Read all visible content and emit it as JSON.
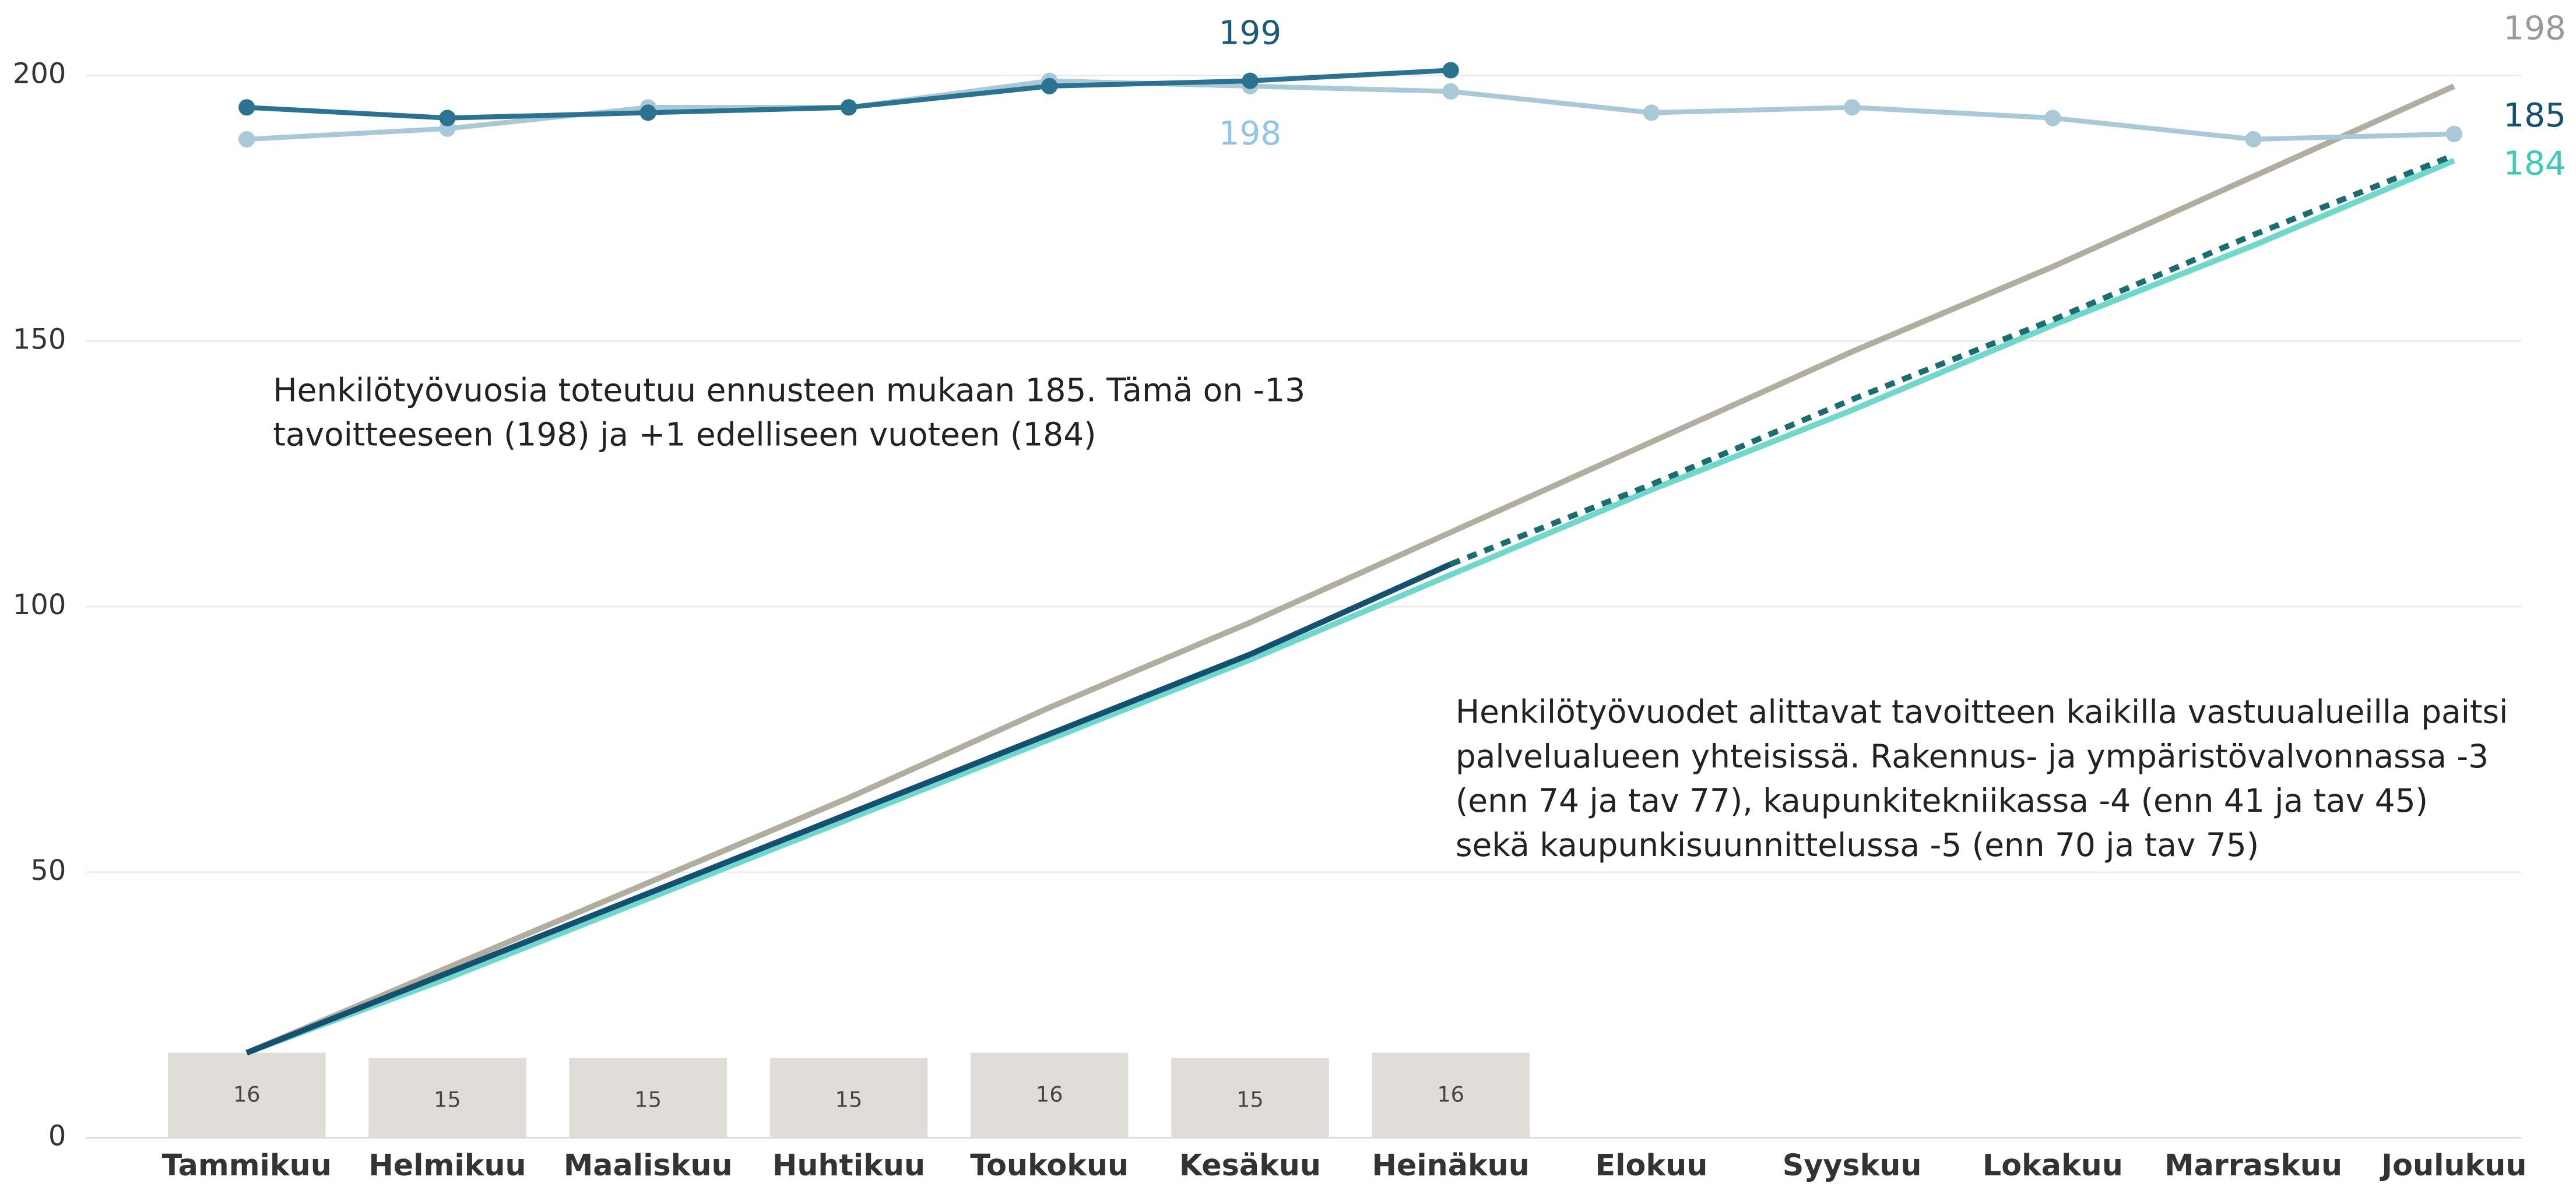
{
  "chart_data": {
    "type": "line",
    "categories": [
      "Tammikuu",
      "Helmikuu",
      "Maaliskuu",
      "Huhtikuu",
      "Toukokuu",
      "Kesäkuu",
      "Heinäkuu",
      "Elokuu",
      "Syyskuu",
      "Lokakuu",
      "Marraskuu",
      "Joulukuu"
    ],
    "ylim": [
      0,
      200
    ],
    "yticks": [
      0,
      50,
      100,
      150,
      200
    ],
    "grid": true,
    "bars": {
      "color": "#e0ddd6",
      "values": [
        16,
        15,
        15,
        15,
        16,
        15,
        16
      ]
    },
    "series": [
      {
        "color": "#2b7190",
        "markers": true,
        "label_color": "#1d5a78",
        "label_side": "above",
        "values": [
          194,
          192,
          193,
          194,
          198,
          199,
          201,
          null,
          null,
          null,
          null,
          null
        ],
        "value_labels": [
          null,
          null,
          null,
          null,
          null,
          "199",
          null,
          null,
          null,
          null,
          null,
          null
        ]
      },
      {
        "color": "#a9c9d9",
        "markers": true,
        "label_color": "#8fc6ea",
        "label_side": "below",
        "values": [
          188,
          190,
          194,
          194,
          199,
          198,
          197,
          193,
          194,
          192,
          188,
          189
        ],
        "value_labels": [
          null,
          null,
          null,
          null,
          null,
          "198",
          null,
          null,
          null,
          null,
          null,
          null
        ]
      },
      {
        "color": "#b1ae9f",
        "label_color": "#9a9a9a",
        "label_side": "right",
        "values": [
          16,
          32,
          48,
          64,
          81,
          97,
          114,
          131,
          148,
          164,
          181,
          198
        ],
        "value_labels": [
          null,
          null,
          null,
          null,
          null,
          null,
          null,
          null,
          null,
          null,
          null,
          "198"
        ]
      },
      {
        "color": "#6fd8ca",
        "label_color": "#3cc9b5",
        "label_side": "right",
        "values": [
          16,
          30,
          45,
          60,
          75,
          90,
          106,
          122,
          137,
          153,
          168,
          184
        ],
        "value_labels": [
          null,
          null,
          null,
          null,
          null,
          null,
          null,
          null,
          null,
          null,
          null,
          "184"
        ]
      },
      {
        "color": "#14506f",
        "values": [
          16,
          31,
          46,
          61,
          76,
          91,
          108,
          null,
          null,
          null,
          null,
          null
        ]
      },
      {
        "color": "#1c6d70",
        "dashed": true,
        "label_color": "#14506f",
        "label_side": "right",
        "values": [
          null,
          null,
          null,
          null,
          null,
          null,
          108,
          123,
          139,
          154,
          170,
          185
        ],
        "value_labels": [
          null,
          null,
          null,
          null,
          null,
          null,
          null,
          null,
          null,
          null,
          null,
          "185"
        ]
      }
    ],
    "annotations": [
      [
        "Henkilötyövuosia toteutuu ennusteen mukaan 185. Tämä on -13",
        "tavoitteeseen (198) ja +1 edelliseen vuoteen (184)"
      ],
      [
        "Henkilötyövuodet alittavat tavoitteen kaikilla vastuualueilla paitsi",
        "palvelualueen yhteisissä. Rakennus- ja ympäristövalvonnassa -3",
        "(enn 74 ja tav 77), kaupunkitekniikassa -4 (enn 41 ja tav 45)",
        "sekä kaupunkisuunnittelussa -5 (enn 70 ja tav 75)"
      ]
    ]
  }
}
